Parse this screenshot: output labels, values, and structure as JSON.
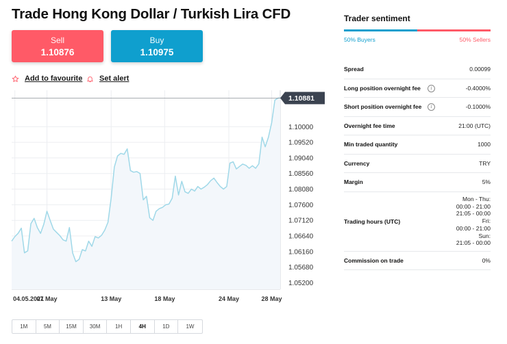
{
  "title": "Trade Hong Kong Dollar / Turkish Lira CFD",
  "sell": {
    "label": "Sell",
    "price": "1.10876"
  },
  "buy": {
    "label": "Buy",
    "price": "1.10975"
  },
  "actions": {
    "favourite": "Add to favourite",
    "alert": "Set alert"
  },
  "chart_data": {
    "type": "area",
    "title": "",
    "xlabel": "",
    "ylabel": "",
    "current_price_label": "1.10881",
    "current_price": 1.10881,
    "y_ticks": [
      "1.10000",
      "1.09520",
      "1.09040",
      "1.08560",
      "1.08080",
      "1.07600",
      "1.07120",
      "1.06640",
      "1.06160",
      "1.05680",
      "1.05200"
    ],
    "y_tick_values": [
      1.1,
      1.0952,
      1.0904,
      1.0856,
      1.0808,
      1.076,
      1.0712,
      1.0664,
      1.0616,
      1.0568,
      1.052
    ],
    "ylim": [
      1.05,
      1.1112
    ],
    "x_ticks": [
      "04.05.2021",
      "07 May",
      "13 May",
      "18 May",
      "24 May",
      "28 May"
    ],
    "x_tick_days": [
      0,
      3,
      9,
      14,
      20,
      24
    ],
    "xlim": [
      -0.3,
      24.8
    ],
    "grid": true,
    "line_color": "#9fd8e8",
    "fill_color": "#f3f7fb",
    "series": [
      {
        "name": "",
        "x": [
          -0.3,
          0.0,
          0.3,
          0.6,
          0.9,
          1.2,
          1.5,
          1.8,
          2.1,
          2.4,
          2.7,
          3.0,
          3.3,
          3.6,
          3.9,
          4.2,
          4.5,
          4.8,
          5.1,
          5.4,
          5.7,
          6.0,
          6.3,
          6.6,
          6.9,
          7.2,
          7.5,
          7.8,
          8.1,
          8.4,
          8.7,
          9.0,
          9.3,
          9.6,
          9.9,
          10.2,
          10.5,
          10.8,
          11.1,
          11.4,
          11.7,
          12.0,
          12.3,
          12.6,
          12.9,
          13.2,
          13.5,
          13.8,
          14.1,
          14.4,
          14.7,
          15.0,
          15.3,
          15.6,
          15.9,
          16.2,
          16.5,
          16.8,
          17.1,
          17.4,
          17.7,
          18.0,
          18.3,
          18.6,
          18.9,
          19.2,
          19.5,
          19.8,
          20.1,
          20.4,
          20.7,
          21.0,
          21.3,
          21.6,
          21.9,
          22.2,
          22.5,
          22.8,
          23.1,
          23.4,
          23.7,
          24.0,
          24.3,
          24.6,
          24.8
        ],
        "values": [
          1.0648,
          1.0662,
          1.0672,
          1.0688,
          1.0612,
          1.0618,
          1.0702,
          1.0718,
          1.069,
          1.0672,
          1.07,
          1.074,
          1.0712,
          1.0685,
          1.0675,
          1.0665,
          1.0652,
          1.0648,
          1.069,
          1.0612,
          1.0585,
          1.0592,
          1.0622,
          1.0618,
          1.0648,
          1.0632,
          1.0662,
          1.0658,
          1.0666,
          1.0682,
          1.0706,
          1.078,
          1.0876,
          1.091,
          1.0918,
          1.0915,
          1.0932,
          1.0865,
          1.086,
          1.0862,
          1.0856,
          1.0775,
          1.0786,
          1.072,
          1.0712,
          1.074,
          1.0748,
          1.0752,
          1.076,
          1.0762,
          1.078,
          1.0848,
          1.079,
          1.0832,
          1.08,
          1.0795,
          1.0808,
          1.0802,
          1.0816,
          1.0808,
          1.0814,
          1.0822,
          1.0834,
          1.0842,
          1.0828,
          1.0816,
          1.0808,
          1.0816,
          1.0888,
          1.0892,
          1.087,
          1.0878,
          1.0885,
          1.0881,
          1.0872,
          1.088,
          1.0872,
          1.0886,
          1.0968,
          1.0938,
          1.0968,
          1.1012,
          1.1082,
          1.1088,
          1.1088
        ]
      }
    ]
  },
  "timeframes": {
    "items": [
      "1M",
      "5M",
      "15M",
      "30M",
      "1H",
      "4H",
      "1D",
      "1W"
    ],
    "active": "4H"
  },
  "sentiment": {
    "title": "Trader sentiment",
    "buyers_label": "50% Buyers",
    "sellers_label": "50% Sellers",
    "buyers_pct": 50,
    "buy_color": "#0f9fce",
    "sell_color": "#ff5a67"
  },
  "details": [
    {
      "label": "Spread",
      "value": "0.00099",
      "info": false
    },
    {
      "label": "Long position overnight fee",
      "value": "-0.4000%",
      "info": true
    },
    {
      "label": "Short position overnight fee",
      "value": "-0.1000%",
      "info": true
    },
    {
      "label": "Overnight fee time",
      "value": "21:00 (UTC)",
      "info": false
    },
    {
      "label": "Min traded quantity",
      "value": "1000",
      "info": false
    },
    {
      "label": "Currency",
      "value": "TRY",
      "info": false
    },
    {
      "label": "Margin",
      "value": "5%",
      "info": false
    }
  ],
  "trading_hours": {
    "label": "Trading hours (UTC)",
    "lines": [
      "Mon - Thu:",
      "00:00 - 21:00",
      "21:05 - 00:00",
      "Fri:",
      "00:00 - 21:00",
      "Sun:",
      "21:05 - 00:00"
    ]
  },
  "commission": {
    "label": "Commission on trade",
    "value": "0%"
  },
  "colors": {
    "sell": "#ff5a67",
    "buy": "#0f9fce",
    "price_tag": "#3b4350"
  }
}
